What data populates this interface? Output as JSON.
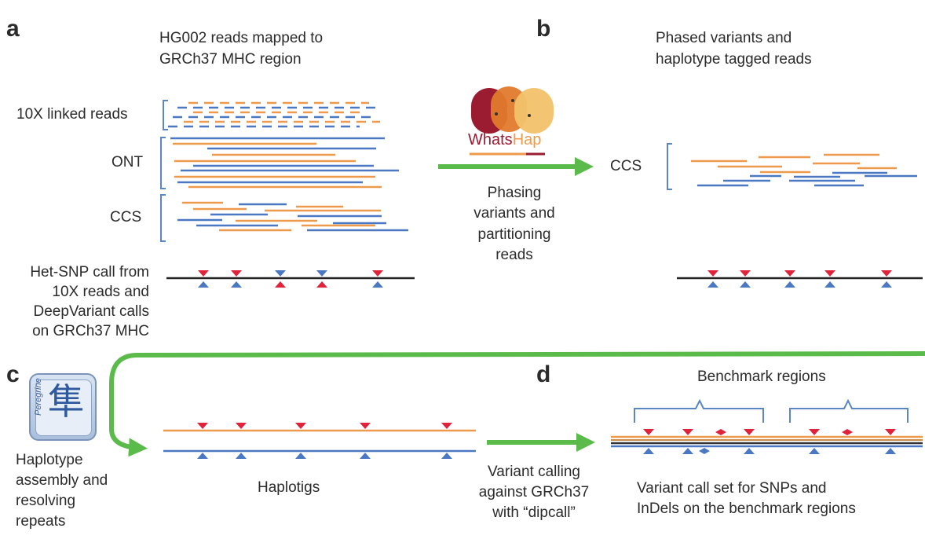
{
  "panels": {
    "a": "a",
    "b": "b",
    "c": "c",
    "d": "d"
  },
  "panel_a": {
    "title_line1": "HG002 reads mapped to",
    "title_line2": "GRCh37 MHC region",
    "label_10x": "10X linked reads",
    "label_ont": "ONT",
    "label_ccs": "CCS",
    "het_line1": "Het-SNP call from",
    "het_line2": "10X reads and",
    "het_line3": "DeepVariant calls",
    "het_line4": "on GRCh37 MHC"
  },
  "whatshap": {
    "logo_part1": "Whats",
    "logo_part2": "Hap",
    "step_line1": "Phasing",
    "step_line2": "variants and",
    "step_line3": "partitioning",
    "step_line4": "reads"
  },
  "panel_b": {
    "title_line1": "Phased variants and",
    "title_line2": "haplotype tagged reads",
    "label_ccs": "CCS"
  },
  "panel_c": {
    "peregrine_word": "Peregrine",
    "peregrine_glyph": "隼",
    "desc_line1": "Haplotype",
    "desc_line2": "assembly and",
    "desc_line3": "resolving",
    "desc_line4": "repeats",
    "haplotigs_label": "Haplotigs"
  },
  "variant_calling": {
    "line1": "Variant calling",
    "line2": "against GRCh37",
    "line3": "with “dipcall”"
  },
  "panel_d": {
    "benchmark_label": "Benchmark regions",
    "desc_line1": "Variant call set for SNPs and",
    "desc_line2": "InDels on the benchmark regions"
  },
  "colors": {
    "orange": "#ee9a4d",
    "blue": "#4a78c2",
    "red": "#e0223a",
    "green": "#5bbb4a",
    "bracket": "#5b86c4",
    "text": "#2b2b2b"
  }
}
